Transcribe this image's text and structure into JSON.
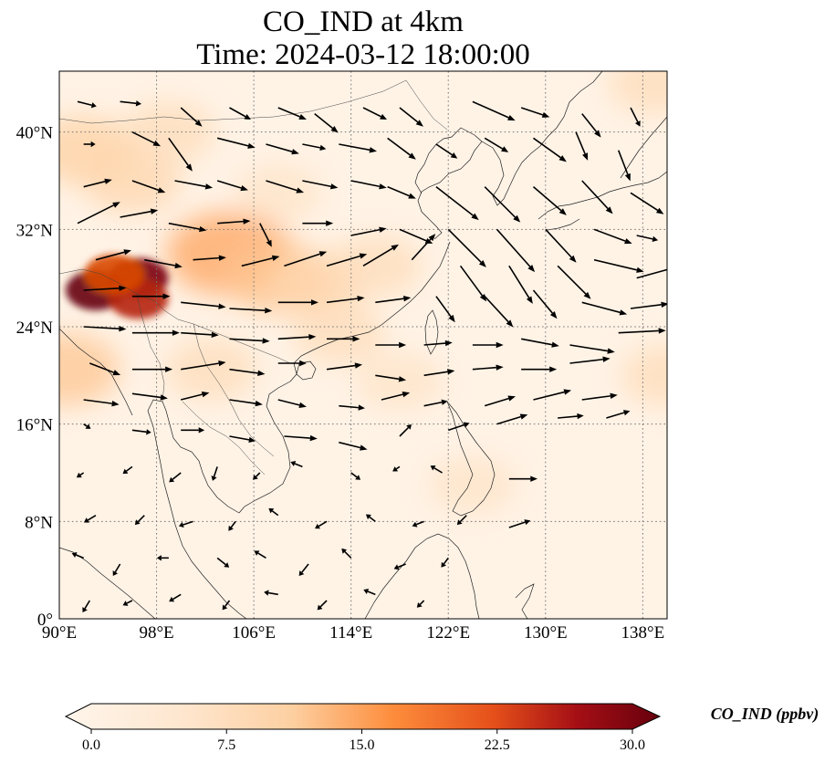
{
  "chart_data": {
    "type": "heatmap",
    "title": "CO_IND at 4km",
    "subtitle": "Time: 2024-03-12 18:00:00",
    "x_ticks": [
      "90°E",
      "98°E",
      "106°E",
      "114°E",
      "122°E",
      "130°E",
      "138°E"
    ],
    "y_ticks": [
      "0°",
      "8°N",
      "16°N",
      "24°N",
      "32°N",
      "40°N"
    ],
    "xlim": [
      90,
      140
    ],
    "ylim": [
      0,
      45
    ],
    "grid": true,
    "colorbar": {
      "label": "CO_IND (ppbv)",
      "ticks": [
        "0.0",
        "7.5",
        "15.0",
        "22.5",
        "30.0"
      ],
      "range": [
        0,
        30
      ],
      "extend": "both",
      "colors": [
        "#fff5eb",
        "#fdd0a2",
        "#fd8d3c",
        "#d94801",
        "#a50f15",
        "#67000d"
      ]
    },
    "field_hotspots": [
      {
        "lon": 93.0,
        "lat": 27.0,
        "value": 30
      },
      {
        "lon": 96.5,
        "lat": 28.0,
        "value": 28
      },
      {
        "lon": 96.5,
        "lat": 26.3,
        "value": 22
      },
      {
        "lon": 94.5,
        "lat": 28.3,
        "value": 18
      },
      {
        "lon": 104.0,
        "lat": 30.0,
        "value": 10
      },
      {
        "lon": 108.0,
        "lat": 28.0,
        "value": 7
      },
      {
        "lon": 111.0,
        "lat": 27.5,
        "value": 5
      },
      {
        "lon": 113.0,
        "lat": 23.5,
        "value": 4
      },
      {
        "lon": 116.0,
        "lat": 29.0,
        "value": 4
      },
      {
        "lon": 90.5,
        "lat": 20.5,
        "value": 7
      },
      {
        "lon": 92.0,
        "lat": 38.5,
        "value": 6
      },
      {
        "lon": 96.0,
        "lat": 36.0,
        "value": 5
      },
      {
        "lon": 99.0,
        "lat": 40.0,
        "value": 4
      },
      {
        "lon": 108.0,
        "lat": 35.0,
        "value": 3
      },
      {
        "lon": 102.5,
        "lat": 20.5,
        "value": 4
      },
      {
        "lon": 118.0,
        "lat": 19.5,
        "value": 3
      },
      {
        "lon": 140.0,
        "lat": 20.0,
        "value": 4
      },
      {
        "lon": 139.0,
        "lat": 44.0,
        "value": 4
      },
      {
        "lon": 124.0,
        "lat": 11.0,
        "value": 3
      }
    ],
    "wind_vectors": [
      {
        "lon": 91.5,
        "lat": 42.5,
        "u": 0.8,
        "v": -0.2
      },
      {
        "lon": 95,
        "lat": 42.5,
        "u": 0.9,
        "v": -0.1
      },
      {
        "lon": 100,
        "lat": 42,
        "u": 0.9,
        "v": -0.8
      },
      {
        "lon": 104,
        "lat": 42,
        "u": 0.9,
        "v": -0.5
      },
      {
        "lon": 108,
        "lat": 42,
        "u": 1.2,
        "v": -0.5
      },
      {
        "lon": 111,
        "lat": 41.5,
        "u": 1.0,
        "v": -0.8
      },
      {
        "lon": 115,
        "lat": 42,
        "u": 1.0,
        "v": -0.5
      },
      {
        "lon": 118,
        "lat": 42,
        "u": 1.0,
        "v": -0.8
      },
      {
        "lon": 124,
        "lat": 42.5,
        "u": 1.8,
        "v": -0.8
      },
      {
        "lon": 128,
        "lat": 42,
        "u": 1.2,
        "v": -0.4
      },
      {
        "lon": 133,
        "lat": 41.5,
        "u": 0.8,
        "v": -1.0
      },
      {
        "lon": 137,
        "lat": 42,
        "u": 0.4,
        "v": -0.8
      },
      {
        "lon": 92,
        "lat": 39,
        "u": 0.5,
        "v": 0
      },
      {
        "lon": 96,
        "lat": 40,
        "u": 1.2,
        "v": -0.6
      },
      {
        "lon": 99,
        "lat": 39.5,
        "u": 1.0,
        "v": -1.4
      },
      {
        "lon": 103,
        "lat": 39.5,
        "u": 1.6,
        "v": -0.4
      },
      {
        "lon": 107,
        "lat": 39,
        "u": 1.4,
        "v": -0.4
      },
      {
        "lon": 110,
        "lat": 39,
        "u": 1.0,
        "v": -0.2
      },
      {
        "lon": 113,
        "lat": 39,
        "u": 1.6,
        "v": -0.3
      },
      {
        "lon": 117,
        "lat": 39.5,
        "u": 1.2,
        "v": -0.9
      },
      {
        "lon": 121,
        "lat": 39,
        "u": 0.9,
        "v": -0.6
      },
      {
        "lon": 125,
        "lat": 39.5,
        "u": 1.0,
        "v": -0.6
      },
      {
        "lon": 129,
        "lat": 39.5,
        "u": 1.4,
        "v": -1.0
      },
      {
        "lon": 132.5,
        "lat": 40,
        "u": 0.5,
        "v": -1.2
      },
      {
        "lon": 136,
        "lat": 38.5,
        "u": 0.5,
        "v": -1.3
      },
      {
        "lon": 92,
        "lat": 35.5,
        "u": 1.2,
        "v": 0.3
      },
      {
        "lon": 96,
        "lat": 36,
        "u": 1.4,
        "v": -0.5
      },
      {
        "lon": 99.5,
        "lat": 36,
        "u": 1.6,
        "v": -0.3
      },
      {
        "lon": 103,
        "lat": 36,
        "u": 1.3,
        "v": -0.4
      },
      {
        "lon": 107,
        "lat": 36,
        "u": 1.6,
        "v": -0.5
      },
      {
        "lon": 110,
        "lat": 36,
        "u": 1.5,
        "v": -0.3
      },
      {
        "lon": 114,
        "lat": 36,
        "u": 1.5,
        "v": -0.3
      },
      {
        "lon": 117,
        "lat": 35.5,
        "u": 1.2,
        "v": -0.5
      },
      {
        "lon": 121,
        "lat": 35.5,
        "u": 1.8,
        "v": -1.4
      },
      {
        "lon": 125,
        "lat": 35.5,
        "u": 1.5,
        "v": -1.5
      },
      {
        "lon": 129,
        "lat": 35.5,
        "u": 1.4,
        "v": -1.2
      },
      {
        "lon": 133,
        "lat": 36,
        "u": 1.3,
        "v": -1.4
      },
      {
        "lon": 137,
        "lat": 35,
        "u": 1.4,
        "v": -0.9
      },
      {
        "lon": 91.5,
        "lat": 32.5,
        "u": 1.8,
        "v": 0.9
      },
      {
        "lon": 95,
        "lat": 33,
        "u": 1.6,
        "v": 0.3
      },
      {
        "lon": 99,
        "lat": 32.5,
        "u": 1.6,
        "v": -0.3
      },
      {
        "lon": 103,
        "lat": 32.5,
        "u": 1.4,
        "v": 0.1
      },
      {
        "lon": 106.5,
        "lat": 32.5,
        "u": 0.5,
        "v": -1.0
      },
      {
        "lon": 110,
        "lat": 32.5,
        "u": 1.3,
        "v": 0
      },
      {
        "lon": 114,
        "lat": 31.5,
        "u": 1.5,
        "v": 0.3
      },
      {
        "lon": 118,
        "lat": 32,
        "u": 1.4,
        "v": -0.6
      },
      {
        "lon": 122,
        "lat": 32,
        "u": 1.6,
        "v": -1.6
      },
      {
        "lon": 126,
        "lat": 32,
        "u": 1.6,
        "v": -1.8
      },
      {
        "lon": 130,
        "lat": 32,
        "u": 1.3,
        "v": -1.4
      },
      {
        "lon": 134,
        "lat": 32,
        "u": 1.6,
        "v": -0.6
      },
      {
        "lon": 137.5,
        "lat": 31.5,
        "u": 0.9,
        "v": -0.2
      },
      {
        "lon": 93,
        "lat": 29.5,
        "u": 1.5,
        "v": 0.4
      },
      {
        "lon": 97,
        "lat": 29.5,
        "u": 1.6,
        "v": -0.3
      },
      {
        "lon": 101,
        "lat": 29.5,
        "u": 1.4,
        "v": 0.1
      },
      {
        "lon": 105,
        "lat": 29,
        "u": 1.6,
        "v": 0.4
      },
      {
        "lon": 108.5,
        "lat": 29,
        "u": 1.8,
        "v": 0.6
      },
      {
        "lon": 112,
        "lat": 29,
        "u": 1.7,
        "v": 0.5
      },
      {
        "lon": 115,
        "lat": 29,
        "u": 1.5,
        "v": 0.9
      },
      {
        "lon": 119,
        "lat": 29.5,
        "u": 1.0,
        "v": 1.1
      },
      {
        "lon": 123,
        "lat": 29,
        "u": 1.1,
        "v": -1.5
      },
      {
        "lon": 127,
        "lat": 29,
        "u": 1.0,
        "v": -1.6
      },
      {
        "lon": 131,
        "lat": 29,
        "u": 1.4,
        "v": -1.4
      },
      {
        "lon": 134,
        "lat": 29.5,
        "u": 2.1,
        "v": -0.5
      },
      {
        "lon": 137.5,
        "lat": 28,
        "u": 1.8,
        "v": 0.5
      },
      {
        "lon": 92,
        "lat": 27,
        "u": 1.8,
        "v": 0.1
      },
      {
        "lon": 96,
        "lat": 26.5,
        "u": 1.6,
        "v": 0
      },
      {
        "lon": 100,
        "lat": 26,
        "u": 1.9,
        "v": -0.2
      },
      {
        "lon": 104,
        "lat": 25.5,
        "u": 1.8,
        "v": -0.1
      },
      {
        "lon": 108,
        "lat": 26,
        "u": 1.7,
        "v": 0
      },
      {
        "lon": 112,
        "lat": 26,
        "u": 1.6,
        "v": 0.2
      },
      {
        "lon": 116,
        "lat": 26,
        "u": 1.5,
        "v": 0.2
      },
      {
        "lon": 121,
        "lat": 26.5,
        "u": 0.8,
        "v": -1.1
      },
      {
        "lon": 125,
        "lat": 26.5,
        "u": 1.2,
        "v": -1.3
      },
      {
        "lon": 129,
        "lat": 27,
        "u": 1.0,
        "v": -1.2
      },
      {
        "lon": 133,
        "lat": 26,
        "u": 1.9,
        "v": -0.5
      },
      {
        "lon": 137,
        "lat": 25.5,
        "u": 1.6,
        "v": 0.2
      },
      {
        "lon": 92,
        "lat": 24,
        "u": 1.8,
        "v": -0.1
      },
      {
        "lon": 96,
        "lat": 23.5,
        "u": 2.0,
        "v": 0
      },
      {
        "lon": 100,
        "lat": 23.5,
        "u": 1.6,
        "v": -0.1
      },
      {
        "lon": 104,
        "lat": 23,
        "u": 1.7,
        "v": -0.1
      },
      {
        "lon": 108,
        "lat": 23,
        "u": 1.6,
        "v": 0.1
      },
      {
        "lon": 112,
        "lat": 23,
        "u": 1.4,
        "v": 0
      },
      {
        "lon": 116,
        "lat": 22.5,
        "u": 1.3,
        "v": 0
      },
      {
        "lon": 120,
        "lat": 22.5,
        "u": 1.2,
        "v": 0.1
      },
      {
        "lon": 124,
        "lat": 22.5,
        "u": 1.3,
        "v": 0
      },
      {
        "lon": 128,
        "lat": 23,
        "u": 1.6,
        "v": -0.3
      },
      {
        "lon": 132,
        "lat": 22.5,
        "u": 1.9,
        "v": -0.3
      },
      {
        "lon": 136,
        "lat": 23.5,
        "u": 2.0,
        "v": 0.1
      },
      {
        "lon": 92.5,
        "lat": 21,
        "u": 1.3,
        "v": -0.5
      },
      {
        "lon": 96,
        "lat": 20.5,
        "u": 1.7,
        "v": 0
      },
      {
        "lon": 100,
        "lat": 20.5,
        "u": 1.9,
        "v": 0.3
      },
      {
        "lon": 104,
        "lat": 20.5,
        "u": 1.5,
        "v": -0.2
      },
      {
        "lon": 108,
        "lat": 21,
        "u": 1.2,
        "v": 0
      },
      {
        "lon": 112,
        "lat": 20.5,
        "u": 1.5,
        "v": 0.2
      },
      {
        "lon": 116,
        "lat": 20,
        "u": 1.3,
        "v": -0.2
      },
      {
        "lon": 120,
        "lat": 20,
        "u": 1.3,
        "v": 0.2
      },
      {
        "lon": 124,
        "lat": 20.5,
        "u": 1.3,
        "v": 0.1
      },
      {
        "lon": 128,
        "lat": 20.5,
        "u": 1.5,
        "v": 0
      },
      {
        "lon": 132,
        "lat": 21,
        "u": 1.7,
        "v": 0.2
      },
      {
        "lon": 92,
        "lat": 18,
        "u": 1.5,
        "v": -0.2
      },
      {
        "lon": 96,
        "lat": 18.5,
        "u": 1.5,
        "v": -0.2
      },
      {
        "lon": 100,
        "lat": 18,
        "u": 1.2,
        "v": 0.3
      },
      {
        "lon": 104,
        "lat": 18,
        "u": 1.4,
        "v": -0.2
      },
      {
        "lon": 108,
        "lat": 18,
        "u": 1.2,
        "v": -0.3
      },
      {
        "lon": 113,
        "lat": 17.5,
        "u": 1.1,
        "v": -0.1
      },
      {
        "lon": 116.5,
        "lat": 18,
        "u": 1.2,
        "v": 0.3
      },
      {
        "lon": 120,
        "lat": 17.5,
        "u": 1.0,
        "v": 0.2
      },
      {
        "lon": 125,
        "lat": 17.5,
        "u": 1.3,
        "v": 0.4
      },
      {
        "lon": 129,
        "lat": 18,
        "u": 1.6,
        "v": 0.4
      },
      {
        "lon": 133,
        "lat": 18,
        "u": 1.5,
        "v": 0.2
      },
      {
        "lon": 92,
        "lat": 16,
        "u": 0.3,
        "v": -0.2
      },
      {
        "lon": 96,
        "lat": 15.5,
        "u": 0.8,
        "v": -0.1
      },
      {
        "lon": 100,
        "lat": 15.5,
        "u": 1.0,
        "v": 0
      },
      {
        "lon": 104,
        "lat": 15,
        "u": 1.1,
        "v": -0.2
      },
      {
        "lon": 108.5,
        "lat": 15,
        "u": 1.4,
        "v": -0.1
      },
      {
        "lon": 113,
        "lat": 14.5,
        "u": 1.2,
        "v": -0.3
      },
      {
        "lon": 118,
        "lat": 15,
        "u": 0.5,
        "v": 0.5
      },
      {
        "lon": 122,
        "lat": 15.5,
        "u": 0.9,
        "v": 0.3
      },
      {
        "lon": 126,
        "lat": 16,
        "u": 1.3,
        "v": 0.4
      },
      {
        "lon": 131,
        "lat": 16.5,
        "u": 1.1,
        "v": 0.1
      },
      {
        "lon": 135,
        "lat": 16.5,
        "u": 1.0,
        "v": 0.3
      },
      {
        "lon": 92,
        "lat": 12,
        "u": -0.3,
        "v": -0.2
      },
      {
        "lon": 96,
        "lat": 12.5,
        "u": -0.4,
        "v": -0.3
      },
      {
        "lon": 100,
        "lat": 12,
        "u": -0.5,
        "v": -0.4
      },
      {
        "lon": 103,
        "lat": 12.5,
        "u": -0.2,
        "v": -0.6
      },
      {
        "lon": 106.5,
        "lat": 12,
        "u": -0.3,
        "v": -0.3
      },
      {
        "lon": 110,
        "lat": 12.5,
        "u": -0.5,
        "v": 0.2
      },
      {
        "lon": 114,
        "lat": 12,
        "u": 0.4,
        "v": -0.3
      },
      {
        "lon": 118,
        "lat": 12.5,
        "u": -0.3,
        "v": -0.2
      },
      {
        "lon": 121.5,
        "lat": 12,
        "u": -0.5,
        "v": 0.3
      },
      {
        "lon": 127,
        "lat": 11.5,
        "u": 1.2,
        "v": 0
      },
      {
        "lon": 93,
        "lat": 8.5,
        "u": -0.5,
        "v": -0.3
      },
      {
        "lon": 97,
        "lat": 8.5,
        "u": -0.4,
        "v": -0.4
      },
      {
        "lon": 101,
        "lat": 8,
        "u": -0.6,
        "v": -0.2
      },
      {
        "lon": 104.5,
        "lat": 8,
        "u": -0.3,
        "v": -0.4
      },
      {
        "lon": 108,
        "lat": 8.5,
        "u": -0.4,
        "v": 0.3
      },
      {
        "lon": 112,
        "lat": 8,
        "u": -0.5,
        "v": -0.3
      },
      {
        "lon": 116,
        "lat": 8,
        "u": -0.4,
        "v": 0.3
      },
      {
        "lon": 120,
        "lat": 8,
        "u": -0.5,
        "v": -0.2
      },
      {
        "lon": 123.5,
        "lat": 8.5,
        "u": -0.4,
        "v": -0.4
      },
      {
        "lon": 127,
        "lat": 7.5,
        "u": 0.9,
        "v": 0.3
      },
      {
        "lon": 92,
        "lat": 5,
        "u": -0.5,
        "v": 0.2
      },
      {
        "lon": 95,
        "lat": 4.5,
        "u": -0.3,
        "v": -0.5
      },
      {
        "lon": 99,
        "lat": 5,
        "u": -0.5,
        "v": 0
      },
      {
        "lon": 103,
        "lat": 5,
        "u": 0.5,
        "v": -0.4
      },
      {
        "lon": 107,
        "lat": 5,
        "u": -0.5,
        "v": 0.3
      },
      {
        "lon": 110.5,
        "lat": 4.5,
        "u": -0.4,
        "v": -0.5
      },
      {
        "lon": 114,
        "lat": 5,
        "u": -0.4,
        "v": 0.4
      },
      {
        "lon": 118.5,
        "lat": 4.5,
        "u": -0.5,
        "v": -0.2
      },
      {
        "lon": 122,
        "lat": 5,
        "u": -0.3,
        "v": -0.4
      },
      {
        "lon": 92.5,
        "lat": 1.5,
        "u": -0.3,
        "v": -0.5
      },
      {
        "lon": 96,
        "lat": 1.5,
        "u": -0.4,
        "v": -0.2
      },
      {
        "lon": 100,
        "lat": 2,
        "u": -0.5,
        "v": -0.3
      },
      {
        "lon": 104,
        "lat": 1.5,
        "u": -0.3,
        "v": -0.4
      },
      {
        "lon": 108,
        "lat": 2,
        "u": -0.6,
        "v": 0.1
      },
      {
        "lon": 112,
        "lat": 1.5,
        "u": -0.4,
        "v": -0.4
      },
      {
        "lon": 116,
        "lat": 2,
        "u": -0.5,
        "v": 0.2
      },
      {
        "lon": 120,
        "lat": 1.5,
        "u": -0.3,
        "v": -0.3
      }
    ]
  }
}
